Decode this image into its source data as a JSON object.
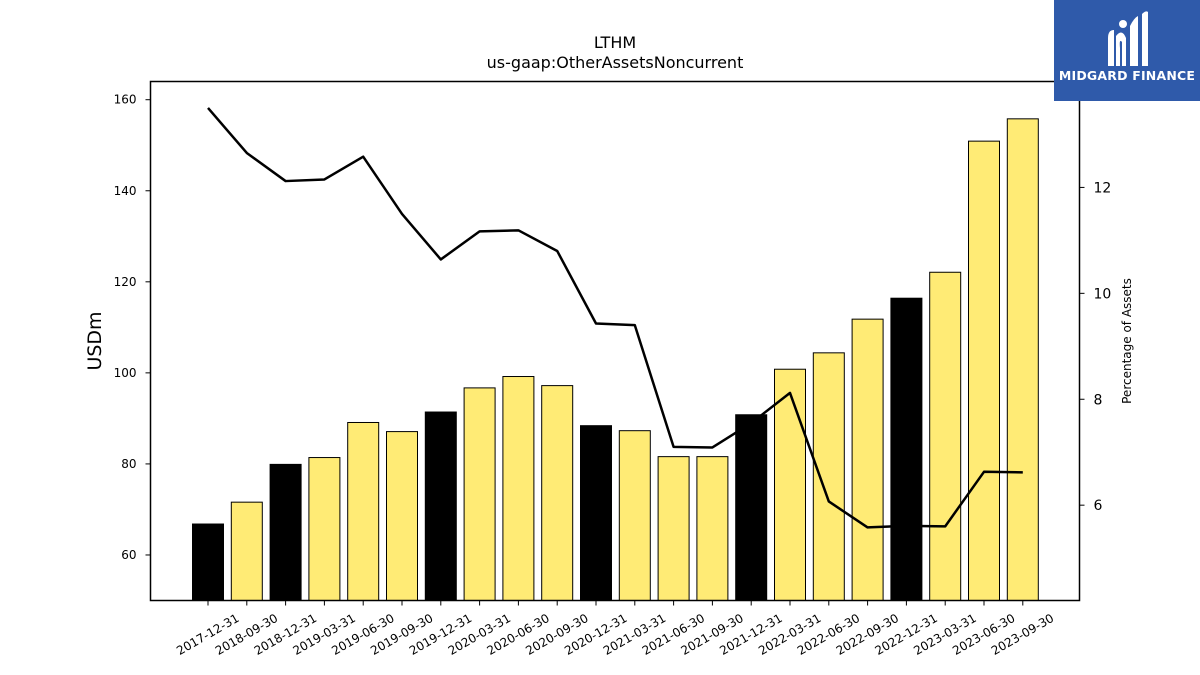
{
  "chart_data": {
    "type": "bar",
    "title": "LTHM",
    "subtitle": "us-gaap:OtherAssetsNoncurrent",
    "ylabel": "USDm",
    "y2label": "Percentage of Assets",
    "ylim": [
      50,
      164
    ],
    "y2lim": [
      4.2,
      14.0
    ],
    "yticks": [
      60,
      80,
      100,
      120,
      140,
      160
    ],
    "y2ticks": [
      6,
      8,
      10,
      12
    ],
    "categories": [
      "2017-12-31",
      "2018-09-30",
      "2018-12-31",
      "2019-03-31",
      "2019-06-30",
      "2019-09-30",
      "2019-12-31",
      "2020-03-31",
      "2020-06-30",
      "2020-09-30",
      "2020-12-31",
      "2021-03-31",
      "2021-06-30",
      "2021-09-30",
      "2021-12-31",
      "2022-03-31",
      "2022-06-30",
      "2022-09-30",
      "2022-12-31",
      "2023-03-31",
      "2023-06-30",
      "2023-09-30"
    ],
    "values": [
      66.8,
      71.6,
      79.9,
      81.4,
      89.1,
      87.1,
      91.4,
      96.7,
      99.2,
      97.2,
      88.4,
      87.3,
      81.6,
      81.6,
      90.8,
      100.8,
      104.4,
      111.8,
      116.4,
      122.1,
      150.9,
      155.8
    ],
    "bar_colors": [
      "#000000",
      "#ffeb75",
      "#000000",
      "#ffeb75",
      "#ffeb75",
      "#ffeb75",
      "#000000",
      "#ffeb75",
      "#ffeb75",
      "#ffeb75",
      "#000000",
      "#ffeb75",
      "#ffeb75",
      "#ffeb75",
      "#000000",
      "#ffeb75",
      "#ffeb75",
      "#ffeb75",
      "#000000",
      "#ffeb75",
      "#ffeb75",
      "#ffeb75"
    ],
    "line_values": [
      13.5,
      12.65,
      12.12,
      12.15,
      12.58,
      11.5,
      10.64,
      11.17,
      11.19,
      10.8,
      9.43,
      9.4,
      7.1,
      7.09,
      7.55,
      8.12,
      6.07,
      5.58,
      5.61,
      5.6,
      6.63,
      6.62
    ],
    "line_color": "#000000",
    "grid": false
  },
  "logo": {
    "text": "MIDGARD FINANCE",
    "background": "#2f5aaa"
  }
}
